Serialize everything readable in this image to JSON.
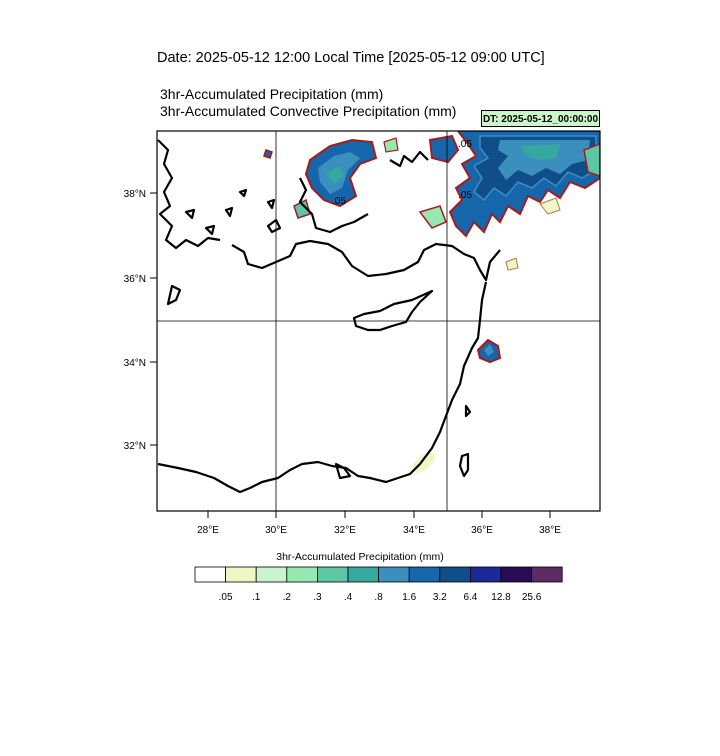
{
  "header": {
    "date_title": "Date: 2025-05-12  12:00 Local Time [2025-05-12  09:00 UTC]",
    "line1": "3hr-Accumulated Precipitation   (mm)",
    "line2": "3hr-Accumulated Convective Precipitation   (mm)",
    "dt_badge": "DT: 2025-05-12_00:00:00"
  },
  "map": {
    "lon_range": [
      26.5,
      39.5
    ],
    "lat_range": [
      30.5,
      39.5
    ],
    "lat_ticks": [
      "38°N",
      "36°N",
      "34°N",
      "32°N"
    ],
    "lon_ticks": [
      "28°E",
      "30°E",
      "32°E",
      "34°E",
      "36°E",
      "38°E"
    ],
    "contour_label": ".05"
  },
  "colorbar": {
    "title": "3hr-Accumulated Precipitation  (mm)",
    "labels": [
      ".05",
      ".1",
      ".2",
      ".3",
      ".4",
      ".8",
      "1.6",
      "3.2",
      "6.4",
      "12.8",
      "25.6"
    ],
    "colors": [
      "#ffffff",
      "#eef7c5",
      "#c9f5cc",
      "#98e8b1",
      "#5cc7a4",
      "#35a89f",
      "#3b8fbf",
      "#1566aa",
      "#104e8a",
      "#1c2a99",
      "#2a0b55",
      "#5e2b67"
    ]
  }
}
